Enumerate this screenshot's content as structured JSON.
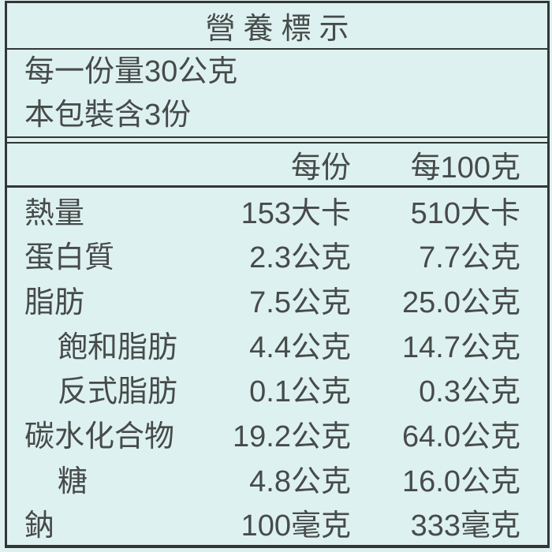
{
  "title": "營養標示",
  "serving_info": {
    "line1": "每一份量30公克",
    "line2": "本包裝含3份"
  },
  "header": {
    "col1": "每份",
    "col2": "每100克"
  },
  "rows": [
    {
      "name": "熱量",
      "indent": false,
      "per_serving": "153大卡",
      "per_100g": "510大卡"
    },
    {
      "name": "蛋白質",
      "indent": false,
      "per_serving": "2.3公克",
      "per_100g": "7.7公克"
    },
    {
      "name": "脂肪",
      "indent": false,
      "per_serving": "7.5公克",
      "per_100g": "25.0公克"
    },
    {
      "name": "飽和脂肪",
      "indent": true,
      "per_serving": "4.4公克",
      "per_100g": "14.7公克"
    },
    {
      "name": "反式脂肪",
      "indent": true,
      "per_serving": "0.1公克",
      "per_100g": "0.3公克"
    },
    {
      "name": "碳水化合物",
      "indent": false,
      "per_serving": "19.2公克",
      "per_100g": "64.0公克"
    },
    {
      "name": "糖",
      "indent": true,
      "per_serving": "4.8公克",
      "per_100g": "16.0公克"
    },
    {
      "name": "鈉",
      "indent": false,
      "per_serving": "100毫克",
      "per_100g": "333毫克"
    }
  ],
  "colors": {
    "background": "#ddf2f0",
    "border": "#333634",
    "text": "#474b4a"
  }
}
